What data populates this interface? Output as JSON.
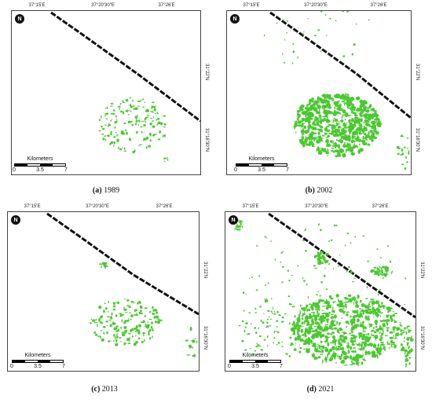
{
  "panels": [
    {
      "id": "a",
      "caption_letter": "(a)",
      "caption_year": "1989",
      "top_coords": [
        "37°15'E",
        "37°20'30\"E",
        "37°26'E"
      ],
      "side_coords": [
        "31°22'N",
        "31°16'30\"N"
      ],
      "north_symbol": "N",
      "scale_title": "Kilometers",
      "scale_labels": [
        "0",
        "3.5",
        "7"
      ],
      "green_density": "low"
    },
    {
      "id": "b",
      "caption_letter": "(b)",
      "caption_year": "2002",
      "top_coords": [
        "37°15'E",
        "37°20'30\"E",
        "37°26'E"
      ],
      "side_coords": [
        "31°22'N",
        "31°16'30\"N"
      ],
      "north_symbol": "N",
      "scale_title": "Kilometers",
      "scale_labels": [
        "0",
        "3.5",
        "7"
      ],
      "green_density": "high"
    },
    {
      "id": "c",
      "caption_letter": "(c)",
      "caption_year": "2013",
      "top_coords": [
        "37°15'E",
        "37°20'30\"E",
        "37°26'E"
      ],
      "side_coords": [
        "31°22'N",
        "31°16'30\"N"
      ],
      "north_symbol": "N",
      "scale_title": "Kilometers",
      "scale_labels": [
        "0",
        "3.5",
        "7"
      ],
      "green_density": "medium"
    },
    {
      "id": "d",
      "caption_letter": "(d)",
      "caption_year": "2021",
      "top_coords": [
        "37°15'E",
        "37°20'30\"E",
        "37°26'E"
      ],
      "side_coords": [
        "31°22'N",
        "31°16'30\"N"
      ],
      "north_symbol": "N",
      "scale_title": "Kilometers",
      "scale_labels": [
        "0",
        "3.5",
        "7"
      ],
      "green_density": "very-high"
    }
  ],
  "colors": {
    "vegetation": "#4cc832",
    "road": "#111111",
    "frame": "#444444"
  }
}
